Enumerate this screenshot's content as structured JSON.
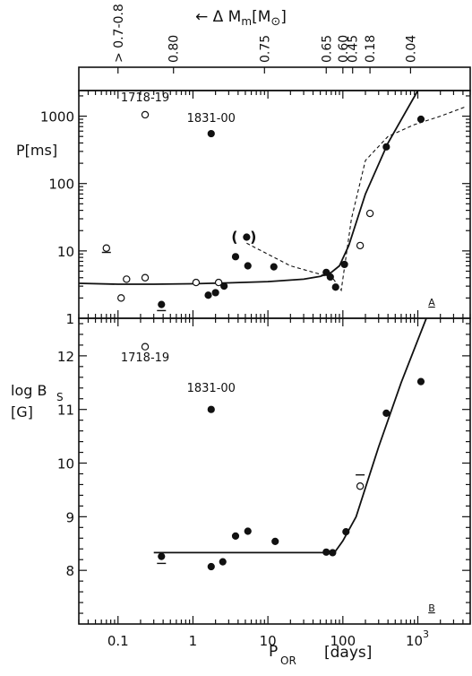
{
  "top_axis": {
    "label": "← Δ M",
    "label_sub": "m",
    "label_tail": "[M",
    "label_sun": "⊙",
    "label_close": "]",
    "ticks": [
      {
        "label": "> 0.7-0.8",
        "at": 0.1
      },
      {
        "label": "0.80",
        "at": 0.55
      },
      {
        "label": "0.75",
        "at": 9
      },
      {
        "label": "0.65",
        "at": 60
      },
      {
        "label": "0.60",
        "at": 100
      },
      {
        "label": "0.45",
        "at": 135
      },
      {
        "label": "0.18",
        "at": 230
      },
      {
        "label": "0.04",
        "at": 800
      }
    ]
  },
  "bottom_axis": {
    "label_main": "P",
    "label_sub": "OR",
    "label_unit": "[days]",
    "ticks": [
      {
        "label": "0.1",
        "value": 0.1
      },
      {
        "label": "1",
        "value": 1
      },
      {
        "label": "10",
        "value": 10
      },
      {
        "label": "100",
        "value": 100
      }
    ],
    "tick_pow": {
      "base": "10",
      "exp": "3",
      "value": 1000
    }
  },
  "chart_data": [
    {
      "type": "scatter",
      "panel_tag": "A",
      "xscale": "log",
      "yscale": "log",
      "xlim": [
        0.03,
        5000
      ],
      "ylim": [
        1,
        2400
      ],
      "ylabel": "P[ms]",
      "yticks": [
        "1",
        "10",
        "100",
        "1000"
      ],
      "ytick_values": [
        1,
        10,
        100,
        1000
      ],
      "annotations": [
        {
          "text": "1718-19",
          "x": 0.23,
          "y": 1650
        },
        {
          "text": "1831-00",
          "x": 1.75,
          "y": 820
        },
        {
          "text": "( )",
          "x": 5.2,
          "y": 16
        }
      ],
      "series": [
        {
          "marker": "filled",
          "points": [
            {
              "x": 0.38,
              "y": 1.6
            },
            {
              "x": 1.6,
              "y": 2.2
            },
            {
              "x": 2.0,
              "y": 2.4
            },
            {
              "x": 2.6,
              "y": 3.0
            },
            {
              "x": 3.7,
              "y": 8.2
            },
            {
              "x": 5.2,
              "y": 16
            },
            {
              "x": 5.4,
              "y": 6.0
            },
            {
              "x": 12,
              "y": 5.8
            },
            {
              "x": 60,
              "y": 4.8
            },
            {
              "x": 68,
              "y": 4.1
            },
            {
              "x": 80,
              "y": 2.9
            },
            {
              "x": 105,
              "y": 6.3
            },
            {
              "x": 380,
              "y": 350
            },
            {
              "x": 1100,
              "y": 900
            },
            {
              "x": 1.75,
              "y": 550
            }
          ]
        },
        {
          "marker": "open",
          "points": [
            {
              "x": 0.07,
              "y": 11
            },
            {
              "x": 0.11,
              "y": 2.0
            },
            {
              "x": 0.13,
              "y": 3.8
            },
            {
              "x": 0.23,
              "y": 4.0
            },
            {
              "x": 1.1,
              "y": 3.4
            },
            {
              "x": 2.2,
              "y": 3.4
            },
            {
              "x": 170,
              "y": 12
            },
            {
              "x": 230,
              "y": 36
            },
            {
              "x": 0.23,
              "y": 1050
            }
          ]
        }
      ],
      "fit_line": [
        [
          0.03,
          3.3
        ],
        [
          0.1,
          3.2
        ],
        [
          0.3,
          3.2
        ],
        [
          1,
          3.25
        ],
        [
          3,
          3.35
        ],
        [
          10,
          3.5
        ],
        [
          30,
          3.8
        ],
        [
          50,
          4.2
        ],
        [
          70,
          4.8
        ],
        [
          90,
          6.0
        ],
        [
          120,
          12
        ],
        [
          200,
          70
        ],
        [
          400,
          400
        ],
        [
          1000,
          2400
        ]
      ],
      "dashed_line": [
        [
          5.2,
          13
        ],
        [
          20,
          6
        ],
        [
          50,
          4.5
        ],
        [
          75,
          3.8
        ],
        [
          95,
          2.6
        ],
        [
          130,
          30
        ],
        [
          200,
          220
        ],
        [
          400,
          500
        ],
        [
          900,
          750
        ],
        [
          2000,
          1000
        ],
        [
          4500,
          1400
        ]
      ],
      "error_marks": [
        {
          "x": 0.07,
          "y": 9.5
        },
        {
          "x": 0.38,
          "y": 1.3
        }
      ]
    },
    {
      "type": "scatter",
      "panel_tag": "B",
      "xscale": "log",
      "yscale": "linear",
      "xlim": [
        0.03,
        5000
      ],
      "ylim": [
        7,
        12.7
      ],
      "ylabel_main": "log B",
      "ylabel_sub": "S",
      "ylabel_unit": "[G]",
      "yticks": [
        "8",
        "9",
        "10",
        "11",
        "12"
      ],
      "ytick_values": [
        8,
        9,
        10,
        11,
        12
      ],
      "annotations": [
        {
          "text": "1718-19",
          "x": 0.23,
          "y": 11.9
        },
        {
          "text": "1831-00",
          "x": 1.75,
          "y": 11.33
        }
      ],
      "series": [
        {
          "marker": "filled",
          "points": [
            {
              "x": 0.38,
              "y": 8.26
            },
            {
              "x": 1.75,
              "y": 8.07
            },
            {
              "x": 2.5,
              "y": 8.16
            },
            {
              "x": 3.7,
              "y": 8.64
            },
            {
              "x": 5.4,
              "y": 8.73
            },
            {
              "x": 12.5,
              "y": 8.54
            },
            {
              "x": 60,
              "y": 8.34
            },
            {
              "x": 73,
              "y": 8.33
            },
            {
              "x": 110,
              "y": 8.72
            },
            {
              "x": 380,
              "y": 10.93
            },
            {
              "x": 1100,
              "y": 11.52
            },
            {
              "x": 1.75,
              "y": 11.0
            }
          ]
        },
        {
          "marker": "open",
          "points": [
            {
              "x": 0.23,
              "y": 12.17
            },
            {
              "x": 170,
              "y": 9.57
            }
          ]
        }
      ],
      "fit_line": [
        [
          0.3,
          8.33
        ],
        [
          1,
          8.33
        ],
        [
          10,
          8.33
        ],
        [
          60,
          8.33
        ],
        [
          80,
          8.36
        ],
        [
          100,
          8.55
        ],
        [
          150,
          9.0
        ],
        [
          300,
          10.3
        ],
        [
          600,
          11.5
        ],
        [
          1300,
          12.7
        ]
      ],
      "error_marks": [
        {
          "x": 0.38,
          "y": 8.13
        },
        {
          "x": 170,
          "y": 9.78
        }
      ]
    }
  ]
}
